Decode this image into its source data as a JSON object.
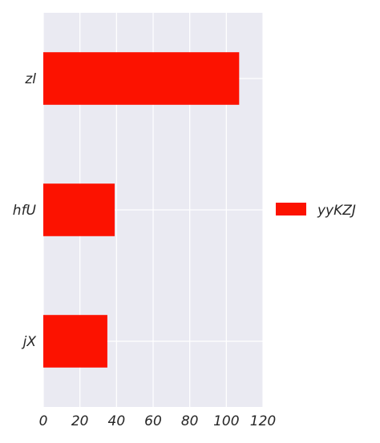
{
  "chart_data": {
    "type": "bar",
    "orientation": "horizontal",
    "categories": [
      "zl",
      "hfU",
      "jX"
    ],
    "series": [
      {
        "name": "yyKZJ",
        "values": [
          107,
          39,
          35
        ],
        "color": "#fc1200"
      }
    ],
    "xlim": [
      0,
      120
    ],
    "xticks": [
      "0",
      "20",
      "40",
      "60",
      "80",
      "100",
      "120"
    ],
    "grid": true,
    "background": "#eaeaf2",
    "legend_position": "right"
  }
}
